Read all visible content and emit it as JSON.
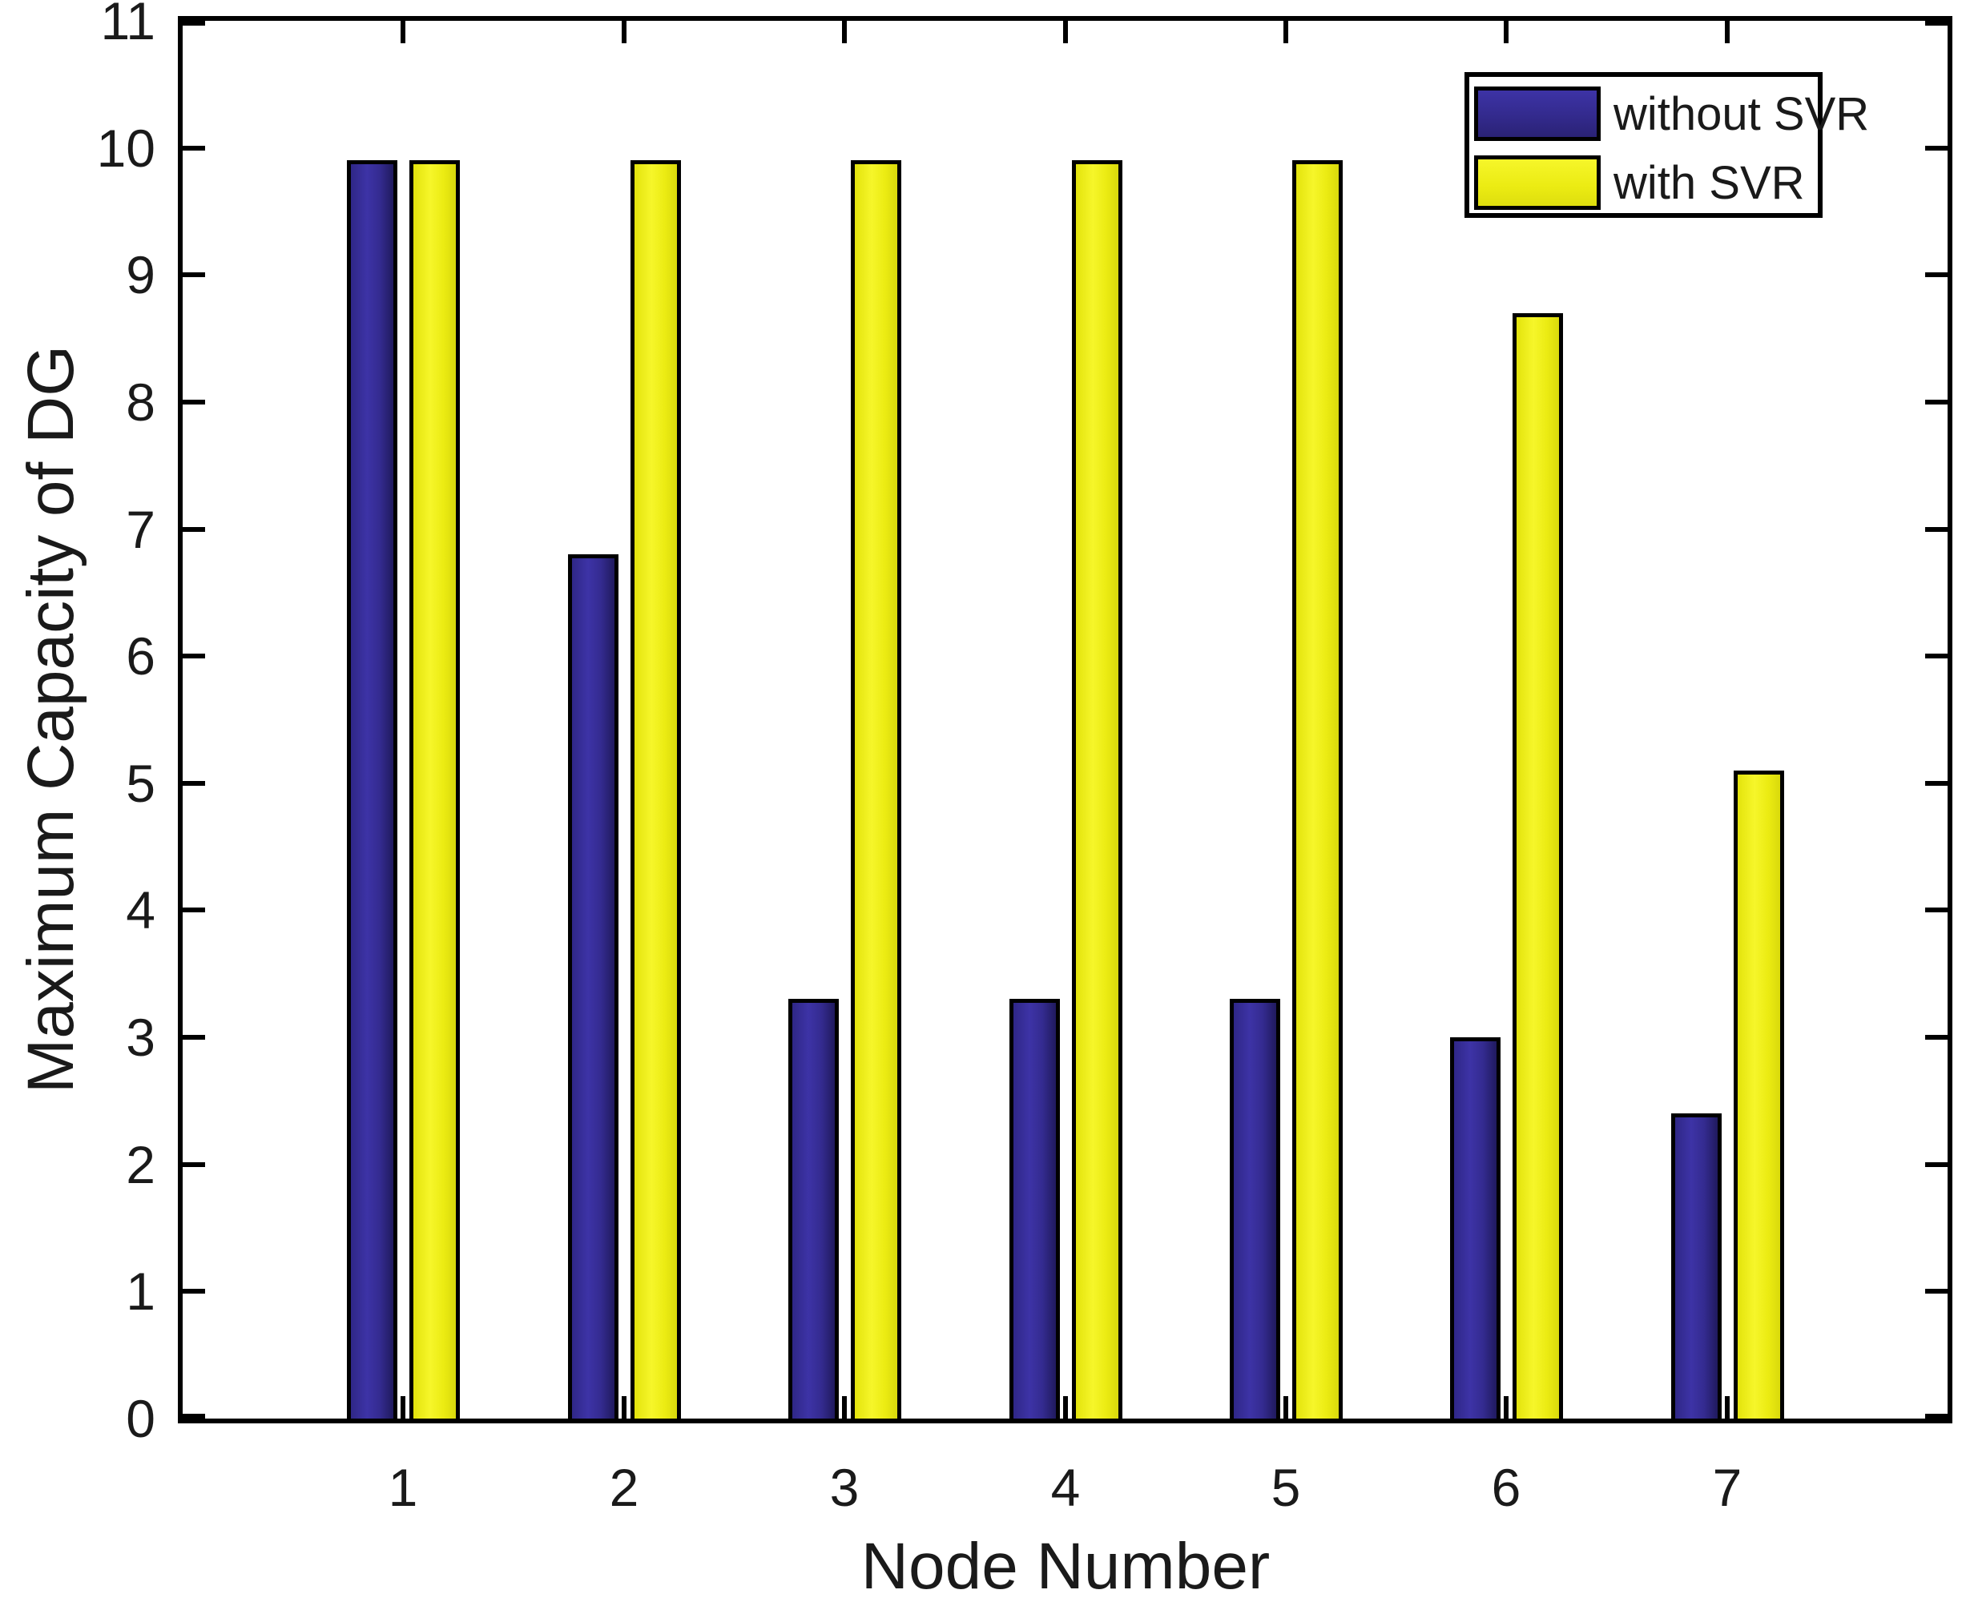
{
  "figure": {
    "background": "#ffffff",
    "axis_color": "#000000",
    "text_color": "#1a1a1a"
  },
  "chart_data": {
    "type": "bar",
    "title": "",
    "xlabel": "Node Number",
    "ylabel": "Maximum Capacity of DG",
    "categories": [
      "1",
      "2",
      "3",
      "4",
      "5",
      "6",
      "7"
    ],
    "series": [
      {
        "name": "without SVR",
        "color": "#332a8d",
        "values": [
          9.9,
          6.8,
          3.3,
          3.3,
          3.3,
          3.0,
          2.4
        ]
      },
      {
        "name": "with SVR",
        "color": "#ebeb12",
        "values": [
          9.9,
          9.9,
          9.9,
          9.9,
          9.9,
          8.7,
          5.1
        ]
      }
    ],
    "ylim": [
      0,
      11
    ],
    "yticks": [
      0,
      1,
      2,
      3,
      4,
      5,
      6,
      7,
      8,
      9,
      10,
      11
    ],
    "grid": false,
    "legend_position": "top-right",
    "bar_outline_color": "#000000"
  }
}
